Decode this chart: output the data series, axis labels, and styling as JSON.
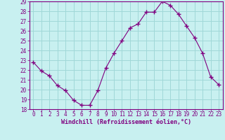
{
  "x": [
    0,
    1,
    2,
    3,
    4,
    5,
    6,
    7,
    8,
    9,
    10,
    11,
    12,
    13,
    14,
    15,
    16,
    17,
    18,
    19,
    20,
    21,
    22,
    23
  ],
  "y": [
    22.8,
    21.9,
    21.4,
    20.4,
    19.9,
    18.9,
    18.4,
    18.4,
    19.9,
    22.2,
    23.7,
    25.0,
    26.3,
    26.7,
    27.9,
    27.9,
    29.0,
    28.6,
    27.7,
    26.5,
    25.3,
    23.7,
    21.3,
    20.5
  ],
  "line_color": "#800080",
  "marker": "+",
  "marker_size": 4,
  "marker_linewidth": 1.0,
  "bg_color": "#c8f0f0",
  "grid_color": "#a0d8d8",
  "xlabel": "Windchill (Refroidissement éolien,°C)",
  "tick_color": "#800080",
  "ylim": [
    18,
    29
  ],
  "xlim_min": -0.5,
  "xlim_max": 23.5,
  "yticks": [
    18,
    19,
    20,
    21,
    22,
    23,
    24,
    25,
    26,
    27,
    28,
    29
  ],
  "xticks": [
    0,
    1,
    2,
    3,
    4,
    5,
    6,
    7,
    8,
    9,
    10,
    11,
    12,
    13,
    14,
    15,
    16,
    17,
    18,
    19,
    20,
    21,
    22,
    23
  ],
  "tick_fontsize": 5.5,
  "xlabel_fontsize": 6.0
}
